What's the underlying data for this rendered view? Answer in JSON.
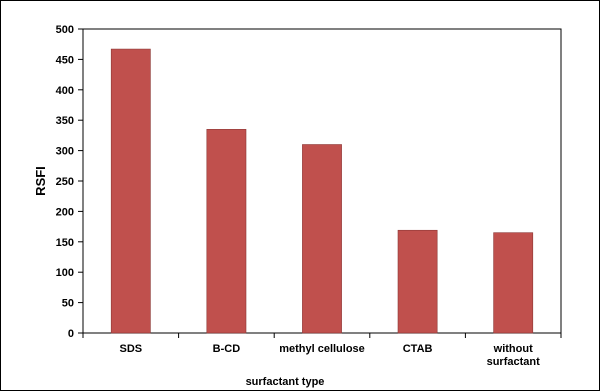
{
  "chart_data": {
    "type": "bar",
    "title": "",
    "xlabel": "surfactant type",
    "ylabel": "RSFI",
    "ylim": [
      0,
      500
    ],
    "yticks": [
      0,
      50,
      100,
      150,
      200,
      250,
      300,
      350,
      400,
      450,
      500
    ],
    "categories": [
      [
        "SDS"
      ],
      [
        "B-CD"
      ],
      [
        "methyl cellulose"
      ],
      [
        "CTAB"
      ],
      [
        "without",
        "surfactant"
      ]
    ],
    "values": [
      467,
      335,
      310,
      169,
      165
    ],
    "grid": false,
    "legend": "none",
    "bar_color": "#c0504d",
    "bar_stroke": "#8c3836"
  }
}
